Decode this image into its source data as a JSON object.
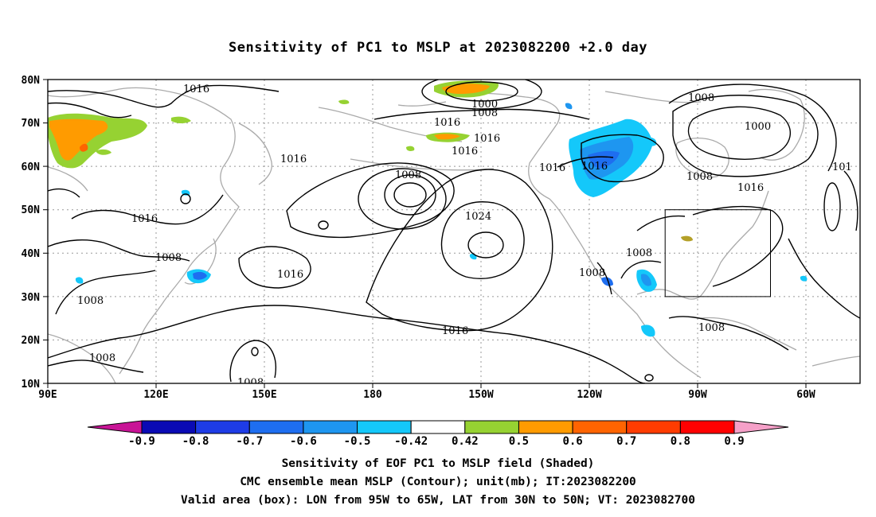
{
  "title": "Sensitivity of PC1 to MSLP at 2023082200 +2.0 day",
  "lat_labels": [
    "80N",
    "70N",
    "60N",
    "50N",
    "40N",
    "30N",
    "20N",
    "10N"
  ],
  "lon_labels": [
    "90E",
    "120E",
    "150E",
    "180",
    "150W",
    "120W",
    "90W",
    "60W"
  ],
  "colorbar": {
    "labels": [
      "-0.9",
      "-0.8",
      "-0.7",
      "-0.6",
      "-0.5",
      "-0.42",
      "0.42",
      "0.5",
      "0.6",
      "0.7",
      "0.8",
      "0.9"
    ],
    "colors": [
      "#0a0ab4",
      "#1e3ce6",
      "#1e6ef0",
      "#1e96f0",
      "#14c8fa",
      "#ffffff",
      "#96d232",
      "#ff9b00",
      "#ff6400",
      "#ff3c00",
      "#ff0000"
    ],
    "low_end_color": "#c81496",
    "high_end_color": "#f5a0c8"
  },
  "contour_labels": {
    "c1016_nw": "1016",
    "c1000_top": "1000",
    "c1008_top": "1008",
    "c1016_mid_top": "1016",
    "c1016_aleut": "1016",
    "c1016_alaska": "1016",
    "c1016_canada": "1016",
    "c1008_ne": "1008",
    "c1000_ne": "1000",
    "c1008_hudson": "1008",
    "c1016_east": "1016",
    "c1016_west_pac": "1016",
    "c1016_nc_pac": "1016",
    "c1008_low": "1008",
    "c1024_high": "1024",
    "c1016_asia": "1016",
    "c1008_china": "1008",
    "c1008_india": "1008",
    "c1008_india2": "1008",
    "c1016_wpac_s": "1016",
    "c1016_subtrop": "1016",
    "c1008_bottom": "1008",
    "c1008_baja": "1008",
    "c1008_mex": "1008",
    "c1008_carib": "1008",
    "c101_edge": "101"
  },
  "captions": [
    "Sensitivity of EOF PC1 to MSLP field (Shaded)",
    "CMC ensemble mean MSLP (Contour); unit(mb); IT:2023082200",
    "Valid area (box): LON from 95W to 65W, LAT from 30N to 50N; VT: 2023082700"
  ]
}
